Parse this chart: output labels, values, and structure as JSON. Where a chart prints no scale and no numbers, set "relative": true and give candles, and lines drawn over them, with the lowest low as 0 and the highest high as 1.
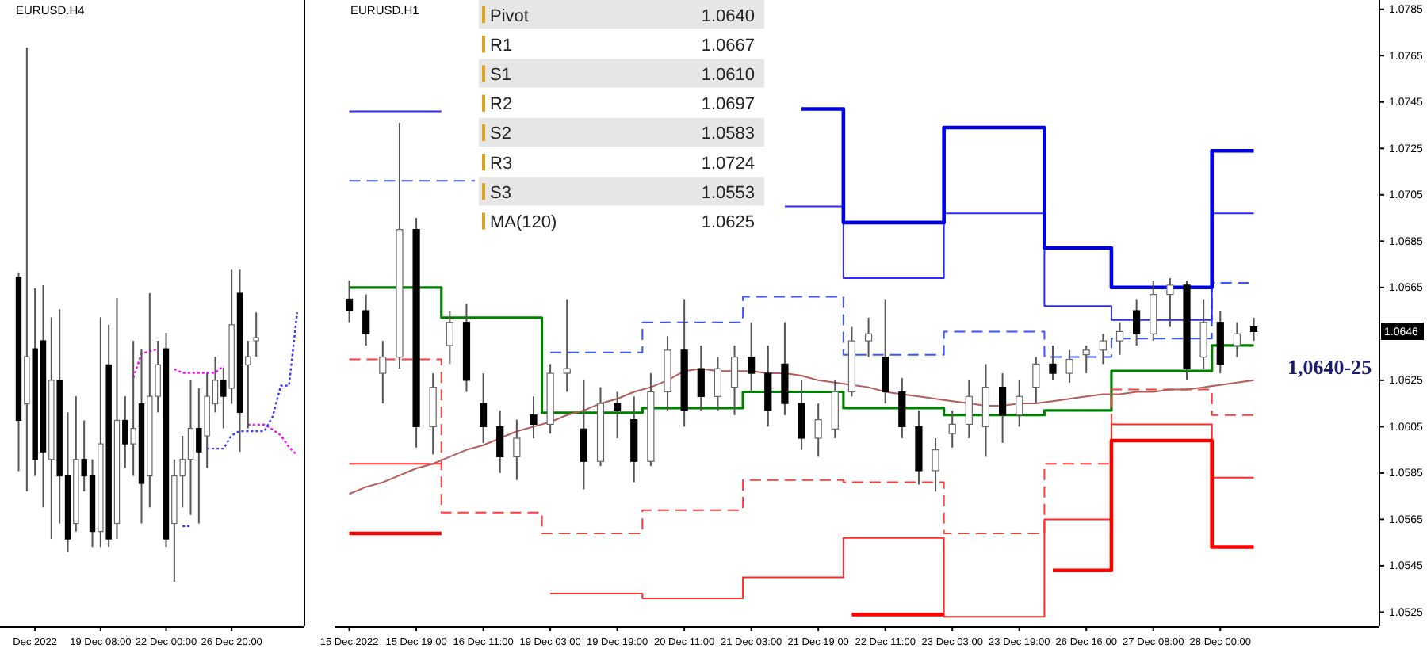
{
  "chart_data": [
    {
      "type": "candlestick",
      "title": "EURUSD.H4",
      "relative": true,
      "categories": [
        null,
        null,
        "Dec 2022",
        null,
        null,
        null,
        null,
        null,
        null,
        null,
        "19 Dec 08:00",
        null,
        null,
        null,
        null,
        null,
        null,
        null,
        "22 Dec 00:00",
        null,
        null,
        null,
        null,
        null,
        null,
        null,
        "26 Dec 20:00",
        null,
        null,
        null,
        null,
        null,
        null,
        null,
        null
      ],
      "ohlc": [
        [
          0.57,
          0.579,
          0.207,
          0.302
        ],
        [
          0.333,
          1,
          0.169,
          0.421
        ],
        [
          0.436,
          0.549,
          0.198,
          0.229
        ],
        [
          0.451,
          0.555,
          0.139,
          0.243
        ],
        [
          0.229,
          0.495,
          0.08,
          0.377
        ],
        [
          0.377,
          0.51,
          0.109,
          0.198
        ],
        [
          0.198,
          0.317,
          0.056,
          0.08
        ],
        [
          0.109,
          0.347,
          0.094,
          0.229
        ],
        [
          0.229,
          0.302,
          0.169,
          0.198
        ],
        [
          0.198,
          0.229,
          0.065,
          0.094
        ],
        [
          0.094,
          0.495,
          0.065,
          0.258
        ],
        [
          0.406,
          0.481,
          0.065,
          0.08
        ],
        [
          0.109,
          0.531,
          0.08,
          0.302
        ],
        [
          0.302,
          0.347,
          0.213,
          0.258
        ],
        [
          0.258,
          0.451,
          0.198,
          0.287
        ],
        [
          0.333,
          0.436,
          0.109,
          0.184
        ],
        [
          0.198,
          0.54,
          0.139,
          0.347
        ],
        [
          0.347,
          0.451,
          0.317,
          0.406
        ],
        [
          0.436,
          0.466,
          0.065,
          0.08
        ],
        [
          0.109,
          0.229,
          0,
          0.198
        ],
        [
          0.198,
          0.273,
          0.139,
          0.229
        ],
        [
          0.229,
          0.377,
          0.125,
          0.287
        ],
        [
          0.287,
          0.362,
          0.109,
          0.243
        ],
        [
          0.273,
          0.391,
          0.213,
          0.347
        ],
        [
          0.333,
          0.421,
          0.317,
          0.377
        ],
        [
          0.377,
          0.401,
          0.287,
          0.347
        ],
        [
          0.362,
          0.584,
          0.333,
          0.481
        ],
        [
          0.54,
          0.584,
          0.243,
          0.317
        ],
        [
          0.406,
          0.451,
          0.287,
          0.421
        ],
        [
          0.451,
          0.504,
          0.421,
          0.457
        ],
        null,
        null,
        null,
        null,
        null
      ],
      "series": [
        {
          "type": "line",
          "color": "#ff00ff",
          "line_style": "dotted",
          "values": [
            null,
            null,
            null,
            null,
            null,
            null,
            null,
            null,
            null,
            null,
            null,
            null,
            null,
            null,
            0.382,
            0.427,
            0.431,
            0.436,
            null,
            0.398,
            0.391,
            0.391,
            0.391,
            0.391,
            0.391,
            0.404,
            null,
            null,
            0.294,
            0.294,
            0.294,
            0.285,
            0.274,
            0.252,
            0.237
          ]
        },
        {
          "type": "line",
          "color": "#3333ff",
          "line_style": "dotted",
          "values": [
            null,
            null,
            null,
            null,
            null,
            null,
            null,
            null,
            null,
            null,
            null,
            null,
            null,
            null,
            null,
            null,
            null,
            null,
            null,
            null,
            0.104,
            0.104,
            null,
            0.249,
            0.249,
            0.249,
            0.274,
            0.282,
            0.282,
            0.282,
            0.282,
            0.309,
            0.367,
            0.367,
            0.504
          ]
        }
      ]
    },
    {
      "type": "candlestick",
      "title": "EURUSD.H1",
      "categories": [
        "15 Dec 2022",
        null,
        null,
        null,
        "15 Dec 19:00",
        null,
        null,
        null,
        "16 Dec 11:00",
        null,
        null,
        null,
        "19 Dec 03:00",
        null,
        null,
        null,
        "19 Dec 19:00",
        null,
        null,
        null,
        "20 Dec 11:00",
        null,
        null,
        null,
        "21 Dec 03:00",
        null,
        null,
        null,
        "21 Dec 19:00",
        null,
        null,
        null,
        "22 Dec 11:00",
        null,
        null,
        null,
        "23 Dec 03:00",
        null,
        null,
        null,
        "23 Dec 19:00",
        null,
        null,
        null,
        "26 Dec 16:00",
        null,
        null,
        null,
        "27 Dec 08:00",
        null,
        null,
        null,
        "28 Dec 00:00",
        null,
        null
      ],
      "ohlc": [
        [
          1.066,
          1.0668,
          1.065,
          1.0655
        ],
        [
          1.0655,
          1.0662,
          1.064,
          1.0645
        ],
        [
          1.0628,
          1.0642,
          1.0615,
          1.0635
        ],
        [
          1.0635,
          1.0736,
          1.063,
          1.069
        ],
        [
          1.069,
          1.0695,
          1.0596,
          1.0605
        ],
        [
          1.0605,
          1.0628,
          1.0593,
          1.0622
        ],
        [
          1.064,
          1.0655,
          1.0632,
          1.065
        ],
        [
          1.065,
          1.0658,
          1.062,
          1.0625
        ],
        [
          1.0615,
          1.0628,
          1.0598,
          1.0605
        ],
        [
          1.0605,
          1.0612,
          1.0585,
          1.0592
        ],
        [
          1.0592,
          1.0608,
          1.0582,
          1.06
        ],
        [
          1.061,
          1.0618,
          1.06,
          1.0606
        ],
        [
          1.0606,
          1.0632,
          1.0602,
          1.0628
        ],
        [
          1.0628,
          1.066,
          1.062,
          1.063
        ],
        [
          1.0604,
          1.0625,
          1.0578,
          1.059
        ],
        [
          1.059,
          1.0622,
          1.0588,
          1.0615
        ],
        [
          1.0615,
          1.062,
          1.06,
          1.0612
        ],
        [
          1.0608,
          1.0618,
          1.0581,
          1.059
        ],
        [
          1.059,
          1.0628,
          1.0588,
          1.062
        ],
        [
          1.062,
          1.0644,
          1.0612,
          1.0638
        ],
        [
          1.0638,
          1.066,
          1.0605,
          1.0612
        ],
        [
          1.063,
          1.064,
          1.0612,
          1.0618
        ],
        [
          1.0618,
          1.0635,
          1.0612,
          1.063
        ],
        [
          1.0622,
          1.064,
          1.061,
          1.0635
        ],
        [
          1.0635,
          1.065,
          1.062,
          1.0628
        ],
        [
          1.0628,
          1.064,
          1.0605,
          1.0612
        ],
        [
          1.0632,
          1.065,
          1.061,
          1.0615
        ],
        [
          1.0615,
          1.0625,
          1.0595,
          1.06
        ],
        [
          1.06,
          1.0615,
          1.0592,
          1.0608
        ],
        [
          1.0604,
          1.0625,
          1.06,
          1.062
        ],
        [
          1.062,
          1.0648,
          1.0618,
          1.0642
        ],
        [
          1.0642,
          1.0652,
          1.0635,
          1.0645
        ],
        [
          1.0635,
          1.066,
          1.0615,
          1.062
        ],
        [
          1.062,
          1.0626,
          1.06,
          1.0605
        ],
        [
          1.0605,
          1.0612,
          1.058,
          1.0586
        ],
        [
          1.0586,
          1.06,
          1.0577,
          1.0595
        ],
        [
          1.0602,
          1.0612,
          1.0596,
          1.0606
        ],
        [
          1.0606,
          1.0625,
          1.06,
          1.0618
        ],
        [
          1.0605,
          1.0632,
          1.0592,
          1.0622
        ],
        [
          1.0622,
          1.0628,
          1.0598,
          1.061
        ],
        [
          1.061,
          1.0625,
          1.0605,
          1.0618
        ],
        [
          1.0622,
          1.0635,
          1.0615,
          1.0632
        ],
        [
          1.0632,
          1.064,
          1.0625,
          1.0628
        ],
        [
          1.0628,
          1.0638,
          1.0624,
          1.0634
        ],
        [
          1.0636,
          1.064,
          1.0628,
          1.0638
        ],
        [
          1.0638,
          1.0645,
          1.0632,
          1.0642
        ],
        [
          1.0642,
          1.065,
          1.0636,
          1.0646
        ],
        [
          1.0655,
          1.066,
          1.064,
          1.0645
        ],
        [
          1.0645,
          1.0668,
          1.0642,
          1.0662
        ],
        [
          1.0662,
          1.0669,
          1.0648,
          1.0666
        ],
        [
          1.0666,
          1.0668,
          1.0625,
          1.063
        ],
        [
          1.0635,
          1.066,
          1.063,
          1.065
        ],
        [
          1.065,
          1.0655,
          1.0628,
          1.0632
        ],
        [
          1.064,
          1.065,
          1.0635,
          1.0645
        ],
        [
          1.0648,
          1.0652,
          1.0642,
          1.0646
        ]
      ],
      "ylim": [
        1.0519,
        1.0789
      ],
      "yticks": [
        1.0525,
        1.0545,
        1.0565,
        1.0585,
        1.0605,
        1.0625,
        1.0665,
        1.0685,
        1.0705,
        1.0725,
        1.0745,
        1.0765,
        1.0785
      ],
      "series": [
        {
          "type": "step",
          "color": "#008000",
          "values": [
            1.0665,
            1.0665,
            1.0665,
            1.0665,
            1.0665,
            1.0665,
            1.0652,
            1.0652,
            1.0652,
            1.0652,
            1.0652,
            1.0652,
            1.0611,
            1.0611,
            1.0611,
            1.0611,
            1.0611,
            1.0611,
            1.0613,
            1.0613,
            1.0613,
            1.0613,
            1.0613,
            1.0613,
            1.062,
            1.062,
            1.062,
            1.062,
            1.062,
            1.062,
            1.0613,
            1.0613,
            1.0613,
            1.0613,
            1.0613,
            1.0613,
            1.061,
            1.061,
            1.061,
            1.061,
            1.061,
            1.061,
            1.0612,
            1.0612,
            1.0612,
            1.0612,
            1.0629,
            1.0629,
            1.0629,
            1.0629,
            1.0629,
            1.0629,
            1.064,
            1.064,
            1.064
          ]
        },
        {
          "type": "step",
          "color": "#3a55ff",
          "line_style": "dashed",
          "values": [
            1.0711,
            1.0711,
            1.0711,
            1.0711,
            1.0711,
            1.0711,
            1.0711,
            1.0711,
            null,
            null,
            null,
            null,
            1.0637,
            1.0637,
            1.0637,
            1.0637,
            1.0637,
            1.0637,
            1.065,
            1.065,
            1.065,
            1.065,
            1.065,
            1.065,
            1.0661,
            1.0661,
            1.0661,
            1.0661,
            1.0661,
            1.0661,
            1.0636,
            1.0636,
            1.0636,
            1.0636,
            1.0636,
            1.0636,
            1.0646,
            1.0646,
            1.0646,
            1.0646,
            1.0646,
            1.0646,
            1.0635,
            1.0635,
            1.0635,
            1.0635,
            1.0643,
            1.0643,
            1.0643,
            1.0643,
            1.0643,
            1.0643,
            1.0667,
            1.0667,
            1.0667
          ]
        },
        {
          "type": "step",
          "color": "#2b2bff",
          "values": [
            1.0741,
            1.0741,
            1.0741,
            1.0741,
            1.0741,
            1.0741,
            null,
            null,
            null,
            null,
            null,
            null,
            null,
            null,
            null,
            null,
            null,
            null,
            null,
            null,
            null,
            null,
            null,
            null,
            null,
            null,
            1.07,
            1.07,
            1.07,
            1.07,
            1.0669,
            1.0669,
            1.0669,
            1.0669,
            1.0669,
            1.0669,
            1.0697,
            1.0697,
            1.0697,
            1.0697,
            1.0697,
            1.0697,
            1.0657,
            1.0657,
            1.0657,
            1.0657,
            1.0651,
            1.0651,
            1.0651,
            1.0651,
            1.0651,
            1.0651,
            1.0697,
            1.0697,
            1.0697
          ]
        },
        {
          "type": "step",
          "color": "#0000e6",
          "values": [
            null,
            null,
            null,
            null,
            null,
            null,
            null,
            null,
            null,
            null,
            null,
            null,
            null,
            null,
            null,
            null,
            null,
            null,
            null,
            null,
            null,
            null,
            null,
            null,
            null,
            null,
            null,
            1.0742,
            1.0742,
            1.0742,
            1.0693,
            1.0693,
            1.0693,
            1.0693,
            1.0693,
            1.0693,
            1.0734,
            1.0734,
            1.0734,
            1.0734,
            1.0734,
            1.0734,
            1.0682,
            1.0682,
            1.0682,
            1.0682,
            1.0665,
            1.0665,
            1.0665,
            1.0665,
            1.0665,
            1.0665,
            1.0724,
            1.0724,
            1.0724
          ]
        },
        {
          "type": "step",
          "color": "#ff3b3b",
          "line_style": "dashed",
          "values": [
            1.0634,
            1.0634,
            1.0634,
            1.0634,
            1.0634,
            1.0634,
            1.0568,
            1.0568,
            1.0568,
            1.0568,
            1.0568,
            1.0568,
            1.0559,
            1.0559,
            1.0559,
            1.0559,
            1.0559,
            1.0559,
            1.0569,
            1.0569,
            1.0569,
            1.0569,
            1.0569,
            1.0569,
            1.0582,
            1.0582,
            1.0582,
            1.0582,
            1.0582,
            1.0582,
            1.0581,
            1.0581,
            1.0581,
            1.0581,
            1.0581,
            1.0581,
            1.0559,
            1.0559,
            1.0559,
            1.0559,
            1.0559,
            1.0559,
            1.0589,
            1.0589,
            1.0589,
            1.0589,
            1.0621,
            1.0621,
            1.0621,
            1.0621,
            1.0621,
            1.0621,
            1.061,
            1.061,
            1.061
          ]
        },
        {
          "type": "step",
          "color": "#ff2a2a",
          "values": [
            1.0589,
            1.0589,
            1.0589,
            1.0589,
            1.0589,
            1.0589,
            null,
            null,
            null,
            null,
            null,
            null,
            1.0533,
            1.0533,
            1.0533,
            1.0533,
            1.0533,
            1.0533,
            1.0531,
            1.0531,
            1.0531,
            1.0531,
            1.0531,
            1.0531,
            1.054,
            1.054,
            1.054,
            1.054,
            1.054,
            1.054,
            1.0557,
            1.0557,
            1.0557,
            1.0557,
            1.0557,
            1.0557,
            1.0523,
            1.0523,
            1.0523,
            1.0523,
            1.0523,
            1.0523,
            1.0565,
            1.0565,
            1.0565,
            1.0565,
            1.0606,
            1.0606,
            1.0606,
            1.0606,
            1.0606,
            1.0606,
            1.0583,
            1.0583,
            1.0583
          ]
        },
        {
          "type": "step",
          "color": "#ff0000",
          "values": [
            1.0559,
            1.0559,
            1.0559,
            1.0559,
            1.0559,
            1.0559,
            null,
            null,
            null,
            null,
            null,
            null,
            null,
            null,
            null,
            null,
            null,
            null,
            null,
            null,
            null,
            null,
            null,
            null,
            null,
            null,
            null,
            null,
            null,
            null,
            1.0524,
            1.0524,
            1.0524,
            1.0524,
            1.0524,
            1.0524,
            null,
            null,
            null,
            null,
            null,
            null,
            1.0543,
            1.0543,
            1.0543,
            1.0543,
            1.0599,
            1.0599,
            1.0599,
            1.0599,
            1.0599,
            1.0599,
            1.0553,
            1.0553,
            1.0553
          ]
        },
        {
          "type": "line",
          "color": "#b35c5c",
          "values": [
            1.0576,
            1.0579,
            1.0581,
            1.0584,
            1.0587,
            1.0589,
            1.0592,
            1.0595,
            1.0597,
            1.06,
            1.0603,
            1.0605,
            1.0607,
            1.061,
            1.0612,
            1.0615,
            1.0617,
            1.062,
            1.0622,
            1.0625,
            1.0629,
            1.063,
            1.0629,
            1.0629,
            1.0629,
            1.0628,
            1.0628,
            1.0627,
            1.0625,
            1.0624,
            1.0623,
            1.0622,
            1.062,
            1.0619,
            1.0618,
            1.0617,
            1.0616,
            1.0615,
            1.0614,
            1.0614,
            1.0615,
            1.0615,
            1.0616,
            1.0617,
            1.0618,
            1.0619,
            1.0619,
            1.062,
            1.062,
            1.0621,
            1.0621,
            1.0622,
            1.0623,
            1.0624,
            1.0625
          ]
        }
      ],
      "annotations": [
        "1.0646",
        "1,0640-25",
        "Pivot",
        "1.0640",
        "R1",
        "1.0667",
        "S1",
        "1.0610",
        "R2",
        "1.0697",
        "S2",
        "1.0583",
        "R3",
        "1.0724",
        "S3",
        "1.0553",
        "MA(120)",
        "1.0625"
      ]
    }
  ]
}
